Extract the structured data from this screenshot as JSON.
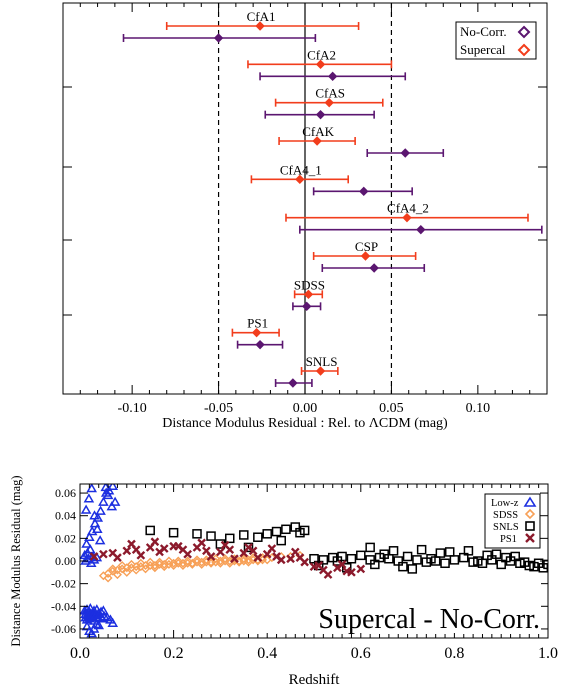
{
  "chart_data": [
    {
      "type": "scatter",
      "variant": "error-bar-forest-plot",
      "title": "",
      "xlabel": "Distance Modulus Residual : Rel. to ΛCDM (mag)",
      "ylabel": "",
      "xlim": [
        -0.14,
        0.14
      ],
      "xticks": [
        -0.1,
        -0.05,
        0.0,
        0.05,
        0.1
      ],
      "xtick_labels": [
        "-0.10",
        "-0.05",
        "0.00",
        "0.05",
        "0.10"
      ],
      "reference_lines": [
        -0.05,
        0.0,
        0.05
      ],
      "legend": {
        "position": "top-right",
        "entries": [
          "No-Corr.",
          "Supercal"
        ]
      },
      "colors": {
        "No-Corr.": "#5b1670",
        "Supercal": "#f23d1c"
      },
      "surveys": [
        {
          "label": "CfA1",
          "supercal": {
            "x": -0.026,
            "lo": -0.08,
            "hi": 0.031
          },
          "nocorr": {
            "x": -0.05,
            "lo": -0.105,
            "hi": 0.006
          }
        },
        {
          "label": "CfA2",
          "supercal": {
            "x": 0.009,
            "lo": -0.033,
            "hi": 0.05
          },
          "nocorr": {
            "x": 0.016,
            "lo": -0.026,
            "hi": 0.058
          }
        },
        {
          "label": "CfAS",
          "supercal": {
            "x": 0.014,
            "lo": -0.017,
            "hi": 0.045
          },
          "nocorr": {
            "x": 0.009,
            "lo": -0.023,
            "hi": 0.04
          }
        },
        {
          "label": "CfAK",
          "supercal": {
            "x": 0.007,
            "lo": -0.015,
            "hi": 0.029
          },
          "nocorr": {
            "x": 0.058,
            "lo": 0.036,
            "hi": 0.08
          }
        },
        {
          "label": "CfA4_1",
          "supercal": {
            "x": -0.003,
            "lo": -0.031,
            "hi": 0.025
          },
          "nocorr": {
            "x": 0.034,
            "lo": 0.005,
            "hi": 0.062
          }
        },
        {
          "label": "CfA4_2",
          "supercal": {
            "x": 0.059,
            "lo": -0.011,
            "hi": 0.129
          },
          "nocorr": {
            "x": 0.067,
            "lo": -0.003,
            "hi": 0.137
          }
        },
        {
          "label": "CSP",
          "supercal": {
            "x": 0.035,
            "lo": 0.005,
            "hi": 0.064
          },
          "nocorr": {
            "x": 0.04,
            "lo": 0.01,
            "hi": 0.069
          }
        },
        {
          "label": "SDSS",
          "supercal": {
            "x": 0.002,
            "lo": -0.006,
            "hi": 0.01
          },
          "nocorr": {
            "x": 0.001,
            "lo": -0.007,
            "hi": 0.009
          }
        },
        {
          "label": "PS1",
          "supercal": {
            "x": -0.028,
            "lo": -0.042,
            "hi": -0.015
          },
          "nocorr": {
            "x": -0.026,
            "lo": -0.039,
            "hi": -0.013
          }
        },
        {
          "label": "SNLS",
          "supercal": {
            "x": 0.009,
            "lo": -0.002,
            "hi": 0.019
          },
          "nocorr": {
            "x": -0.007,
            "lo": -0.017,
            "hi": 0.004
          }
        }
      ]
    },
    {
      "type": "scatter",
      "title": "",
      "annotation": "Supercal - No-Corr.",
      "xlabel": "Redshift",
      "ylabel": "Distance Modulus Residual (mag)",
      "xlim": [
        0.0,
        1.0
      ],
      "ylim": [
        -0.068,
        0.068
      ],
      "xticks": [
        0.0,
        0.2,
        0.4,
        0.6,
        0.8,
        1.0
      ],
      "xtick_labels": [
        "0.0",
        "0.2",
        "0.4",
        "0.6",
        "0.8",
        "1.0"
      ],
      "yticks": [
        -0.06,
        -0.04,
        -0.02,
        0.0,
        0.02,
        0.04,
        0.06
      ],
      "ytick_labels": [
        "-0.06",
        "-0.04",
        "-0.02",
        "0.00",
        "0.02",
        "0.04",
        "0.06"
      ],
      "legend": {
        "position": "top-right",
        "entries": [
          "Low-z",
          "SDSS",
          "SNLS",
          "PS1"
        ]
      },
      "colors": {
        "Low-z": "#1c2fe0",
        "SDSS": "#f7a057",
        "SNLS": "#000000",
        "PS1": "#8c1a2c"
      },
      "markers": {
        "Low-z": "triangle",
        "SDSS": "diamond",
        "SNLS": "square",
        "PS1": "x"
      },
      "series": [
        {
          "name": "Low-z",
          "x": [
            0.01,
            0.012,
            0.015,
            0.018,
            0.02,
            0.022,
            0.025,
            0.028,
            0.03,
            0.033,
            0.036,
            0.04,
            0.045,
            0.05,
            0.012,
            0.015,
            0.018,
            0.021,
            0.024,
            0.027,
            0.03,
            0.034,
            0.038,
            0.042,
            0.047,
            0.052,
            0.058,
            0.065,
            0.07,
            0.015,
            0.02,
            0.025,
            0.03,
            0.035,
            0.04,
            0.012,
            0.018,
            0.024,
            0.03,
            0.036,
            0.01,
            0.016,
            0.022,
            0.028,
            0.014,
            0.02,
            0.026,
            0.032,
            0.038,
            0.044,
            0.05,
            0.056,
            0.062,
            0.07,
            0.013,
            0.019,
            0.025,
            0.031,
            0.037,
            0.043,
            0.055,
            0.06,
            0.068,
            0.075
          ],
          "y": [
            -0.044,
            -0.047,
            -0.043,
            -0.049,
            -0.045,
            -0.042,
            -0.05,
            -0.046,
            -0.044,
            -0.048,
            -0.043,
            -0.046,
            -0.045,
            -0.044,
            -0.05,
            -0.052,
            -0.048,
            -0.051,
            -0.047,
            -0.049,
            -0.053,
            -0.048,
            -0.05,
            -0.047,
            -0.051,
            -0.049,
            -0.05,
            -0.052,
            -0.055,
            -0.058,
            -0.062,
            -0.064,
            -0.06,
            -0.056,
            -0.057,
            0.0,
            0.002,
            -0.002,
            0.001,
            0.003,
            0.005,
            0.007,
            0.01,
            0.004,
            0.015,
            0.021,
            0.026,
            0.033,
            0.038,
            0.044,
            0.052,
            0.06,
            0.062,
            0.066,
            0.045,
            0.055,
            0.064,
            0.04,
            0.028,
            0.018,
            0.065,
            0.058,
            0.048,
            0.052
          ]
        },
        {
          "name": "SDSS",
          "x": [
            0.05,
            0.06,
            0.07,
            0.08,
            0.09,
            0.1,
            0.11,
            0.12,
            0.13,
            0.14,
            0.15,
            0.16,
            0.17,
            0.18,
            0.19,
            0.2,
            0.21,
            0.22,
            0.23,
            0.24,
            0.25,
            0.26,
            0.27,
            0.28,
            0.29,
            0.3,
            0.31,
            0.32,
            0.33,
            0.34,
            0.35,
            0.36,
            0.37,
            0.38,
            0.39,
            0.4,
            0.06,
            0.08,
            0.1,
            0.12,
            0.14,
            0.16,
            0.18,
            0.2,
            0.22,
            0.24,
            0.26,
            0.28,
            0.3,
            0.32,
            0.34,
            0.36,
            0.38,
            0.07,
            0.09,
            0.11,
            0.13,
            0.15,
            0.17,
            0.19,
            0.21,
            0.23,
            0.25,
            0.27,
            0.29,
            0.31,
            0.33,
            0.35,
            0.37,
            0.39,
            0.41,
            0.43,
            0.45,
            0.47
          ],
          "y": [
            -0.013,
            -0.011,
            -0.009,
            -0.008,
            -0.007,
            -0.006,
            -0.006,
            -0.005,
            -0.005,
            -0.004,
            -0.004,
            -0.004,
            -0.003,
            -0.003,
            -0.003,
            -0.002,
            -0.002,
            -0.002,
            -0.002,
            -0.002,
            -0.001,
            -0.001,
            -0.001,
            -0.001,
            -0.001,
            0.0,
            0.0,
            0.0,
            0.0,
            0.0,
            0.0,
            0.001,
            0.001,
            0.001,
            0.001,
            0.001,
            -0.015,
            -0.012,
            -0.01,
            -0.008,
            -0.007,
            -0.006,
            -0.005,
            -0.004,
            -0.004,
            -0.003,
            -0.003,
            -0.002,
            -0.002,
            -0.002,
            -0.001,
            -0.001,
            0.0,
            -0.007,
            -0.004,
            -0.003,
            -0.002,
            -0.001,
            -0.001,
            0.0,
            0.0,
            0.0,
            0.001,
            0.001,
            0.002,
            0.002,
            0.002,
            0.002,
            0.003,
            0.003,
            0.003,
            0.004,
            0.004,
            0.005
          ]
        },
        {
          "name": "SNLS",
          "x": [
            0.15,
            0.2,
            0.25,
            0.28,
            0.32,
            0.35,
            0.38,
            0.4,
            0.42,
            0.44,
            0.46,
            0.47,
            0.48,
            0.5,
            0.52,
            0.54,
            0.55,
            0.56,
            0.58,
            0.6,
            0.62,
            0.64,
            0.65,
            0.66,
            0.68,
            0.7,
            0.72,
            0.74,
            0.75,
            0.76,
            0.78,
            0.8,
            0.82,
            0.84,
            0.85,
            0.86,
            0.88,
            0.9,
            0.92,
            0.94,
            0.95,
            0.96,
            0.98,
            1.0,
            0.3,
            0.36,
            0.43,
            0.51,
            0.57,
            0.63,
            0.69,
            0.73,
            0.79,
            0.83,
            0.89,
            0.93,
            0.97,
            0.62,
            0.67,
            0.71,
            0.77,
            0.87,
            0.91,
            0.99
          ],
          "y": [
            0.027,
            0.025,
            0.024,
            0.022,
            0.02,
            0.023,
            0.021,
            0.024,
            0.026,
            0.028,
            0.03,
            0.025,
            0.027,
            0.002,
            0.001,
            0.003,
            0.0,
            0.004,
            0.002,
            0.005,
            0.001,
            0.003,
            0.006,
            0.002,
            0.0,
            0.004,
            0.001,
            -0.001,
            0.002,
            0.0,
            -0.002,
            0.001,
            0.003,
            -0.001,
            0.0,
            -0.002,
            0.001,
            -0.003,
            0.0,
            -0.002,
            -0.001,
            -0.004,
            -0.002,
            -0.003,
            0.015,
            0.012,
            0.018,
            -0.004,
            -0.006,
            -0.003,
            -0.005,
            0.01,
            0.008,
            0.009,
            0.006,
            0.004,
            -0.005,
            0.012,
            0.009,
            -0.007,
            0.007,
            0.005,
            0.003,
            -0.006
          ]
        },
        {
          "name": "PS1",
          "x": [
            0.03,
            0.05,
            0.07,
            0.1,
            0.12,
            0.15,
            0.18,
            0.2,
            0.22,
            0.25,
            0.27,
            0.3,
            0.32,
            0.35,
            0.37,
            0.4,
            0.42,
            0.45,
            0.47,
            0.5,
            0.52,
            0.55,
            0.57,
            0.6,
            0.08,
            0.13,
            0.17,
            0.23,
            0.28,
            0.33,
            0.38,
            0.43,
            0.48,
            0.53,
            0.58,
            0.11,
            0.16,
            0.21,
            0.26,
            0.31,
            0.36,
            0.41,
            0.46,
            0.51,
            0.56
          ],
          "y": [
            0.004,
            0.006,
            0.007,
            0.009,
            0.01,
            0.012,
            0.011,
            0.013,
            0.01,
            0.012,
            0.009,
            0.008,
            0.01,
            0.007,
            0.009,
            0.006,
            0.004,
            0.002,
            0.003,
            -0.005,
            -0.008,
            -0.006,
            -0.009,
            -0.007,
            0.003,
            0.005,
            0.008,
            0.006,
            0.004,
            0.002,
            0.003,
            0.001,
            -0.001,
            -0.012,
            -0.01,
            0.015,
            0.017,
            0.013,
            0.016,
            0.014,
            0.012,
            0.011,
            0.008,
            -0.004,
            -0.003
          ]
        }
      ]
    }
  ]
}
